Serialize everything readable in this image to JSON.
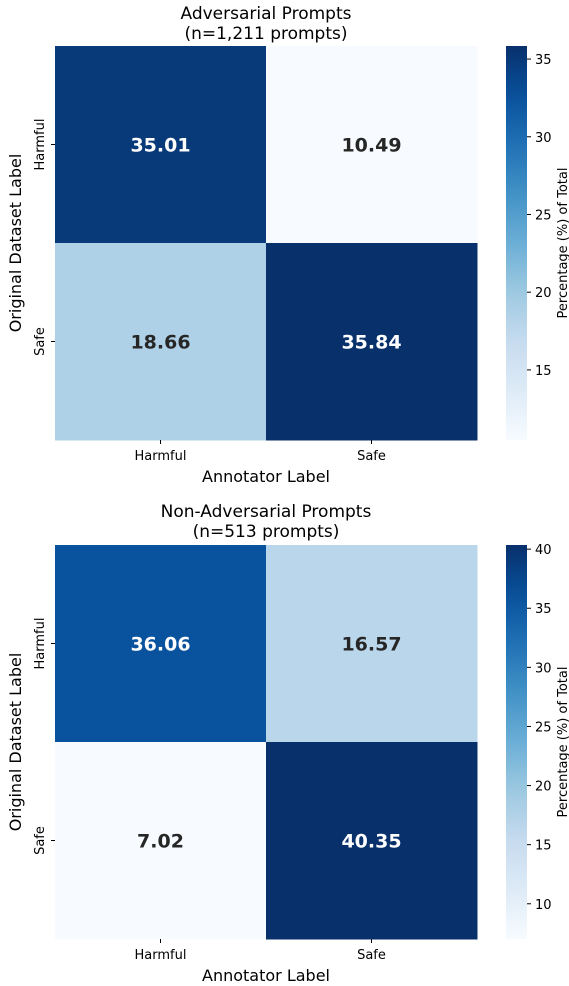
{
  "chart_data": [
    {
      "type": "heatmap",
      "title": "Adversarial Prompts\n(n=1,211 prompts)",
      "xlabel": "Annotator Label",
      "ylabel": "Original Dataset Label",
      "x_categories": [
        "Harmful",
        "Safe"
      ],
      "y_categories": [
        "Harmful",
        "Safe"
      ],
      "values": [
        [
          35.01,
          10.49
        ],
        [
          18.66,
          35.84
        ]
      ],
      "value_labels": [
        [
          "35.01",
          "10.49"
        ],
        [
          "18.66",
          "35.84"
        ]
      ],
      "colorbar": {
        "label": "Percentage (%) of Total",
        "range": [
          10.49,
          35.84
        ],
        "ticks": [
          15,
          20,
          25,
          30,
          35
        ],
        "colormap": "Blues"
      }
    },
    {
      "type": "heatmap",
      "title": "Non-Adversarial Prompts\n(n=513 prompts)",
      "xlabel": "Annotator Label",
      "ylabel": "Original Dataset Label",
      "x_categories": [
        "Harmful",
        "Safe"
      ],
      "y_categories": [
        "Harmful",
        "Safe"
      ],
      "values": [
        [
          36.06,
          16.57
        ],
        [
          7.02,
          40.35
        ]
      ],
      "value_labels": [
        [
          "36.06",
          "16.57"
        ],
        [
          "7.02",
          "40.35"
        ]
      ],
      "colorbar": {
        "label": "Percentage (%) of Total",
        "range": [
          7.02,
          40.35
        ],
        "ticks": [
          10,
          15,
          20,
          25,
          30,
          35,
          40
        ],
        "colormap": "Blues"
      }
    }
  ]
}
